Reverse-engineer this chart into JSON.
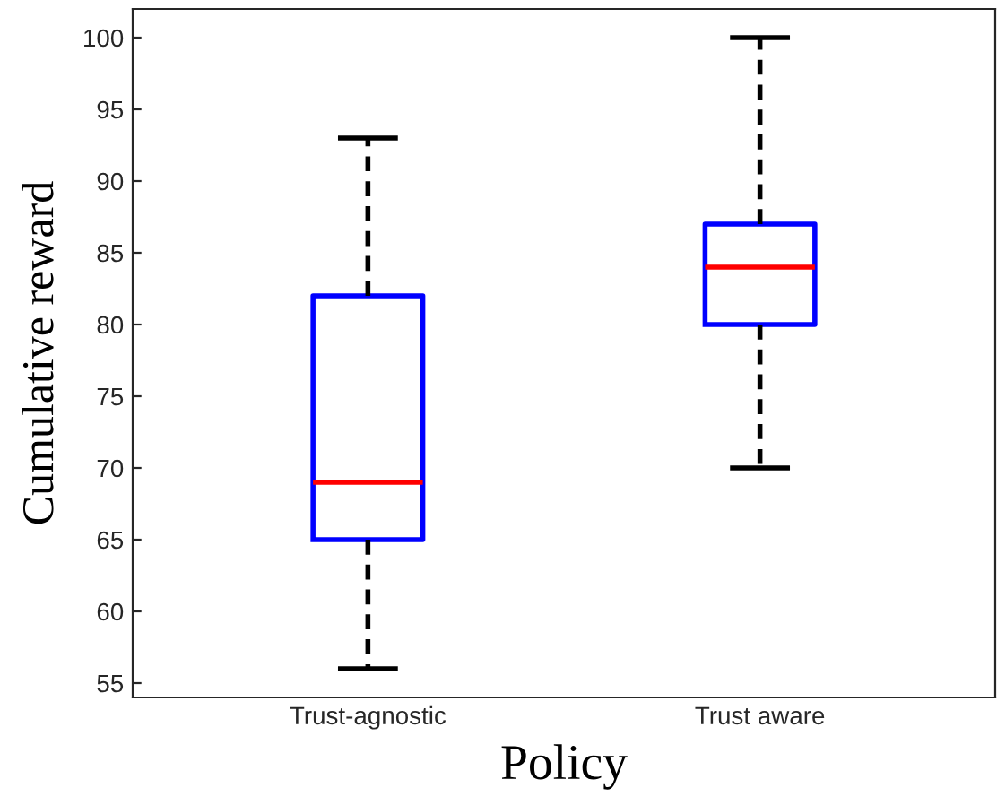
{
  "chart_data": {
    "type": "box",
    "xlabel": "Policy",
    "ylabel": "Cumulative reward",
    "categories": [
      "Trust-agnostic",
      "Trust aware"
    ],
    "series": [
      {
        "color": "#0000ff",
        "boxes": [
          {
            "low": 56,
            "q1": 65,
            "median": 69,
            "q3": 82,
            "high": 93
          },
          {
            "low": 70,
            "q1": 80,
            "median": 84,
            "q3": 87,
            "high": 100
          }
        ]
      }
    ],
    "ylim": [
      54,
      102
    ],
    "yticks": [
      55,
      60,
      65,
      70,
      75,
      80,
      85,
      90,
      95,
      100
    ],
    "grid": false,
    "legend": false
  }
}
